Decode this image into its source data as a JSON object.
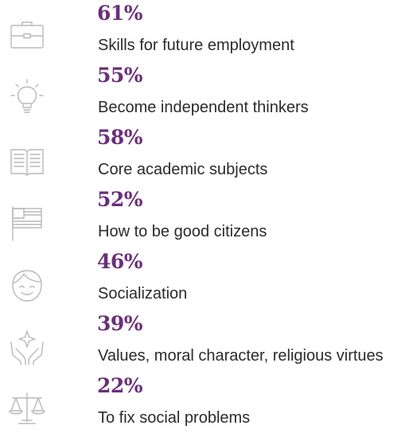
{
  "items": [
    {
      "percent": "61%",
      "label": "Skills for future employment",
      "icon": "briefcase-icon"
    },
    {
      "percent": "55%",
      "label": "Become independent thinkers",
      "icon": "lightbulb-icon"
    },
    {
      "percent": "58%",
      "label": "Core academic subjects",
      "icon": "open-book-icon"
    },
    {
      "percent": "52%",
      "label": "How to be good citizens",
      "icon": "flag-icon"
    },
    {
      "percent": "46%",
      "label": "Socialization",
      "icon": "smiling-face-icon"
    },
    {
      "percent": "39%",
      "label": "Values, moral character, religious virtues",
      "icon": "hands-star-icon"
    },
    {
      "percent": "22%",
      "label": "To fix social problems",
      "icon": "scales-icon"
    }
  ],
  "colors": {
    "percent": "#6b2f7a",
    "label": "#2b2b2b",
    "icon": "#b9b9b9"
  }
}
